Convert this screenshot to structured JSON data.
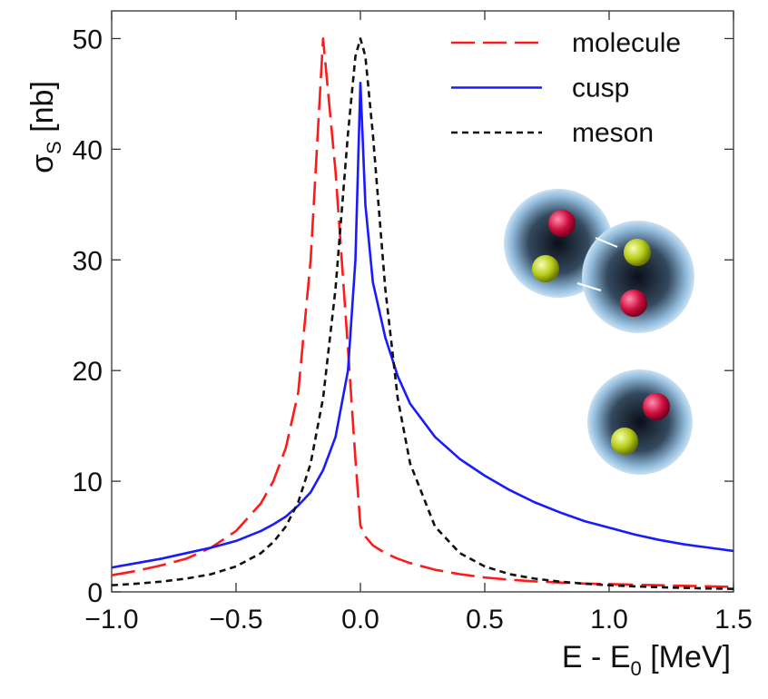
{
  "chart_data": {
    "type": "line",
    "xlabel": [
      "E - E",
      "0",
      " [MeV]"
    ],
    "ylabel": [
      "σ",
      "S",
      " [nb]"
    ],
    "x": [
      -1,
      -0.9,
      -0.8,
      -0.7,
      -0.6,
      -0.5,
      -0.4,
      -0.35,
      -0.3,
      -0.25,
      -0.2,
      -0.15,
      -0.1,
      -0.05,
      -0.02,
      0,
      0.02,
      0.05,
      0.1,
      0.15,
      0.2,
      0.3,
      0.4,
      0.5,
      0.6,
      0.7,
      0.8,
      0.9,
      1.0,
      1.1,
      1.2,
      1.3,
      1.4,
      1.5
    ],
    "series": [
      {
        "name": "molecule",
        "color": "#ff1a1a",
        "style": "dashed",
        "values": [
          1.5,
          1.9,
          2.4,
          3.0,
          4.0,
          5.5,
          8.0,
          10,
          13,
          18,
          30,
          50,
          38,
          22,
          12,
          6,
          5,
          4.2,
          3.5,
          3,
          2.6,
          2.0,
          1.6,
          1.3,
          1.1,
          0.95,
          0.85,
          0.75,
          0.7,
          0.65,
          0.6,
          0.55,
          0.5,
          0.45
        ]
      },
      {
        "name": "cusp",
        "color": "#1a1aff",
        "style": "solid",
        "values": [
          2.2,
          2.6,
          3.0,
          3.5,
          4.0,
          4.6,
          5.5,
          6.1,
          6.8,
          7.8,
          9,
          11,
          14,
          20,
          30,
          46,
          35,
          28,
          23,
          19.5,
          17,
          14,
          12,
          10.5,
          9.2,
          8.1,
          7.2,
          6.4,
          5.8,
          5.2,
          4.7,
          4.3,
          4.0,
          3.7
        ]
      },
      {
        "name": "meson",
        "color": "#111111",
        "style": "dotted",
        "values": [
          0.6,
          0.74,
          0.93,
          1.2,
          1.6,
          2.3,
          3.5,
          4.5,
          5.9,
          8.1,
          11.6,
          17.5,
          27.4,
          41.4,
          48.4,
          50,
          48.4,
          41.4,
          27.4,
          17.5,
          11.6,
          5.9,
          3.5,
          2.3,
          1.6,
          1.2,
          0.93,
          0.74,
          0.6,
          0.5,
          0.42,
          0.36,
          0.31,
          0.27
        ]
      }
    ],
    "xlim": [
      -1,
      1.5
    ],
    "ylim": [
      0,
      52.5
    ],
    "xticks": [
      {
        "value": -1,
        "label": "−1.0"
      },
      {
        "value": -0.5,
        "label": "−0.5"
      },
      {
        "value": 0,
        "label": "0.0"
      },
      {
        "value": 0.5,
        "label": "0.5"
      },
      {
        "value": 1,
        "label": "1.0"
      },
      {
        "value": 1.5,
        "label": "1.5"
      }
    ],
    "yticks": [
      0,
      10,
      20,
      30,
      40,
      50
    ],
    "grid": false,
    "legend": "upper-right"
  }
}
